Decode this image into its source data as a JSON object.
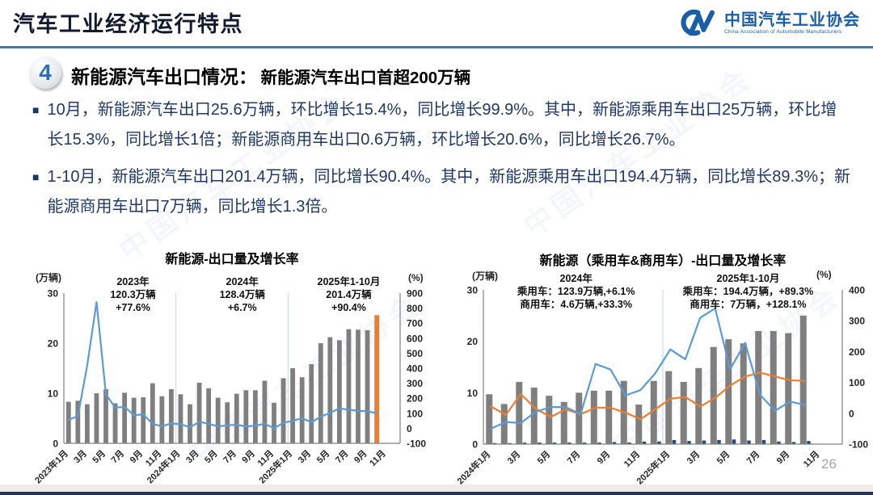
{
  "header": {
    "title": "汽车工业经济运行特点",
    "logo": {
      "org_cn": "中国汽车工业协会",
      "org_en": "China Association of Automobile Manufacturers"
    }
  },
  "section": {
    "number": "4",
    "title": "新能源汽车出口情况：",
    "subtitle": "新能源汽车出口首超200万辆",
    "bullet_marker": "■"
  },
  "bullets": [
    "10月，新能源汽车出口25.6万辆，环比增长15.4%，同比增长99.9%。其中，新能源乘用车出口25万辆，环比增长15.3%，同比增长1倍；新能源商用车出口0.6万辆，环比增长20.6%，同比增长26.7%。",
    "1-10月，新能源汽车出口201.4万辆，同比增长90.4%。其中，新能源乘用车出口194.4万辆，同比增长89.3%；新能源商用车出口7万辆，同比增长1.3倍。"
  ],
  "watermark": "中国汽车工业协会",
  "page_number": "26",
  "colors": {
    "accent_blue": "#2E74B5",
    "bar_gray": "#7F7F7F",
    "bar_navy": "#1F4E79",
    "bar_highlight_orange": "#ED7D31",
    "line_blue": "#5B9BD5",
    "line_orange": "#ED7D31",
    "text_navy": "#1F3864"
  },
  "chart_data": [
    {
      "type": "bar+line",
      "title": "新能源-出口量及增长率",
      "left_axis": {
        "unit": "(万辆)",
        "ticks": [
          0,
          10,
          20,
          30
        ],
        "range": [
          0,
          30
        ]
      },
      "right_axis": {
        "unit": "(%)",
        "ticks": [
          -100,
          0,
          100,
          200,
          300,
          400,
          500,
          600,
          700,
          800,
          900
        ],
        "range": [
          -100,
          900
        ]
      },
      "total_slots": 36,
      "x_tick_labels": [
        "2023年1月",
        "3月",
        "5月",
        "7月",
        "9月",
        "11月",
        "2024年1月",
        "3月",
        "5月",
        "7月",
        "9月",
        "11月",
        "2025年1月",
        "3月",
        "5月",
        "7月",
        "9月",
        "11月"
      ],
      "x_tick_slots": [
        0,
        2,
        4,
        6,
        8,
        10,
        12,
        14,
        16,
        18,
        20,
        22,
        24,
        26,
        28,
        30,
        32,
        34
      ],
      "categories": [
        "2023年1月",
        "2023年2月",
        "2023年3月",
        "2023年4月",
        "2023年5月",
        "2023年6月",
        "2023年7月",
        "2023年8月",
        "2023年9月",
        "2023年10月",
        "2023年11月",
        "2023年12月",
        "2024年1月",
        "2024年2月",
        "2024年3月",
        "2024年4月",
        "2024年5月",
        "2024年6月",
        "2024年7月",
        "2024年8月",
        "2024年9月",
        "2024年10月",
        "2024年11月",
        "2024年12月",
        "2025年1月",
        "2025年2月",
        "2025年3月",
        "2025年4月",
        "2025年5月",
        "2025年6月",
        "2025年7月",
        "2025年8月",
        "2025年9月",
        "2025年10月"
      ],
      "bars": [
        {
          "name": "新能源汽车出口量(万辆)",
          "color": "#7F7F7F",
          "last_color": "#ED7D31",
          "values": [
            8.3,
            8.5,
            7.8,
            10.0,
            10.8,
            8.0,
            10.1,
            9.1,
            9.2,
            12.0,
            9.4,
            10.8,
            9.8,
            7.8,
            12.1,
            11.0,
            9.1,
            8.2,
            9.9,
            10.6,
            10.6,
            12.5,
            8.1,
            13.0,
            15.0,
            13.2,
            15.8,
            20.0,
            21.2,
            20.6,
            22.8,
            22.7,
            22.6,
            25.6
          ]
        }
      ],
      "lines": [
        {
          "name": "同比增长率(%)",
          "color": "#5B9BD5",
          "values": [
            57,
            80,
            420,
            840,
            227,
            137,
            143,
            87,
            93,
            30,
            13,
            33,
            27,
            7,
            43,
            30,
            13,
            20,
            23,
            13,
            17,
            30,
            0,
            37,
            50,
            67,
            40,
            77,
            103,
            133,
            123,
            117,
            113,
            100
          ]
        }
      ],
      "separators": [
        12,
        24
      ],
      "annotations": [
        {
          "lines": [
            "2023年",
            "120.3万辆",
            "+77.6%"
          ],
          "center_slot": 7.4
        },
        {
          "lines": [
            "2024年",
            "128.4万辆",
            "+6.7%"
          ],
          "center_slot": 19.1
        },
        {
          "lines": [
            "2025年1-10月",
            "201.4万辆",
            "+90.4%"
          ],
          "center_slot": 30.5
        }
      ]
    },
    {
      "type": "bar+line",
      "title": "新能源（乘用车&商用车）-出口量及增长率",
      "left_axis": {
        "unit": "(万辆)",
        "ticks": [
          0,
          10,
          20,
          30
        ],
        "range": [
          0,
          30
        ]
      },
      "right_axis": {
        "unit": "(%)",
        "ticks": [
          -100,
          0,
          100,
          200,
          300,
          400
        ],
        "range": [
          -100,
          400
        ]
      },
      "total_slots": 24,
      "x_tick_labels": [
        "2024年1月",
        "3月",
        "5月",
        "7月",
        "9月",
        "11月",
        "2025年1月",
        "3月",
        "5月",
        "7月",
        "9月",
        "11月"
      ],
      "x_tick_slots": [
        0,
        2,
        4,
        6,
        8,
        10,
        12,
        14,
        16,
        18,
        20,
        22
      ],
      "categories": [
        "2024年1月",
        "2024年2月",
        "2024年3月",
        "2024年4月",
        "2024年5月",
        "2024年6月",
        "2024年7月",
        "2024年8月",
        "2024年9月",
        "2024年10月",
        "2024年11月",
        "2024年12月",
        "2025年1月",
        "2025年2月",
        "2025年3月",
        "2025年4月",
        "2025年5月",
        "2025年6月",
        "2025年7月",
        "2025年8月",
        "2025年9月",
        "2025年10月"
      ],
      "bars": [
        {
          "name": "乘用车出口量(万辆)",
          "color": "#7F7F7F",
          "values": [
            9.7,
            7.8,
            12.1,
            11.0,
            9.4,
            8.2,
            10.0,
            10.4,
            10.4,
            12.3,
            7.7,
            12.3,
            14.2,
            12.1,
            14.8,
            18.9,
            20.4,
            19.6,
            22.0,
            22.0,
            21.6,
            25.0
          ]
        },
        {
          "name": "商用车出口量(万辆)",
          "color": "#1F4E79",
          "values": [
            0.2,
            0.2,
            0.3,
            0.3,
            0.3,
            0.3,
            0.3,
            0.3,
            0.4,
            0.3,
            0.5,
            0.5,
            0.8,
            0.6,
            0.7,
            0.8,
            0.9,
            0.7,
            0.8,
            0.5,
            0.4,
            0.6
          ]
        }
      ],
      "lines": [
        {
          "name": "乘用车同比增长率(%)",
          "color": "#ED7D31",
          "values": [
            22,
            -5,
            62,
            15,
            -12,
            13,
            -3,
            18,
            18,
            2,
            -19,
            13,
            47,
            53,
            22,
            50,
            90,
            119,
            132,
            119,
            107,
            105
          ]
        },
        {
          "name": "商用车同比增长率(%)",
          "color": "#5B9BD5",
          "values": [
            -50,
            -28,
            -32,
            5,
            20,
            20,
            -3,
            160,
            142,
            58,
            75,
            130,
            207,
            175,
            310,
            340,
            143,
            228,
            60,
            8,
            38,
            27
          ]
        }
      ],
      "separators": [
        12
      ],
      "annotations": [
        {
          "lines": [
            "2024年",
            "乘用车：123.9万辆,+6.1%",
            "商用车：4.6万辆,+33.3%"
          ],
          "center_slot": 6.2
        },
        {
          "lines": [
            "2025年1-10月",
            "乘用车：194.4万辆，+89.3%",
            "商用车：7万辆，+128.1%"
          ],
          "center_slot": 17.7
        }
      ]
    }
  ]
}
